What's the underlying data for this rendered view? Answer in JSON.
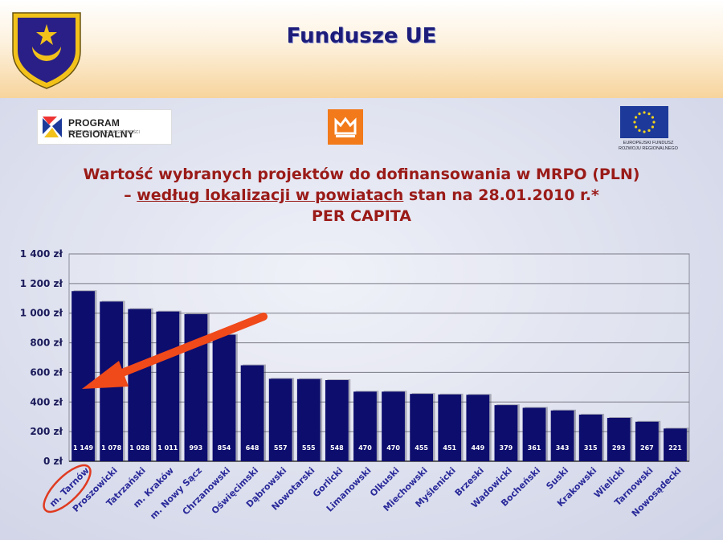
{
  "header": {
    "title": "Fundusze UE"
  },
  "logos": {
    "program": {
      "line1": "PROGRAM REGIONALNY",
      "line2": "NARODOWA STRATEGIA SPÓJNOŚCI"
    },
    "eu": {
      "line1": "EUROPEJSKI FUNDUSZ",
      "line2": "ROZWOJU REGIONALNEGO"
    }
  },
  "colors": {
    "bar": "#0d0d6e",
    "title": "#9a1b18",
    "arrow": "#f0491a",
    "highlight": "#e03a20"
  },
  "chart_data": {
    "type": "bar",
    "title_line1": "Wartość wybranych projektów do dofinansowania w MRPO (PLN)",
    "title_line2_pre": "– ",
    "title_line2_underlined": "według lokalizacji w powiatach",
    "title_line2_post": " stan na 28.01.2010 r.*",
    "title_line3": "PER CAPITA",
    "categories": [
      "m. Tarnów",
      "Proszowicki",
      "Tatrzański",
      "m. Kraków",
      "m. Nowy Sącz",
      "Chrzanowski",
      "Oświęcimski",
      "Dąbrowski",
      "Nowotarski",
      "Gorlicki",
      "Limanowski",
      "Olkuski",
      "Miechowski",
      "Myślenicki",
      "Brzeski",
      "Wadowicki",
      "Bocheński",
      "Suski",
      "Krakowski",
      "Wielicki",
      "Tarnowski",
      "Nowosądecki"
    ],
    "values": [
      1149,
      1078,
      1028,
      1011,
      993,
      854,
      648,
      557,
      555,
      548,
      470,
      470,
      455,
      451,
      449,
      379,
      361,
      343,
      315,
      293,
      267,
      221
    ],
    "value_labels": [
      "1 149",
      "1 078",
      "1 028",
      "1 011",
      "993",
      "854",
      "648",
      "557",
      "555",
      "548",
      "470",
      "470",
      "455",
      "451",
      "449",
      "379",
      "361",
      "343",
      "315",
      "293",
      "267",
      "221"
    ],
    "yticks": [
      0,
      200,
      400,
      600,
      800,
      1000,
      1200,
      1400
    ],
    "ytick_labels": [
      "0 zł",
      "200 zł",
      "400 zł",
      "600 zł",
      "800 zł",
      "1 000 zł",
      "1 200 zł",
      "1 400 zł"
    ],
    "ylim": [
      0,
      1400
    ],
    "grid": true,
    "highlighted_category": "m. Tarnów"
  }
}
